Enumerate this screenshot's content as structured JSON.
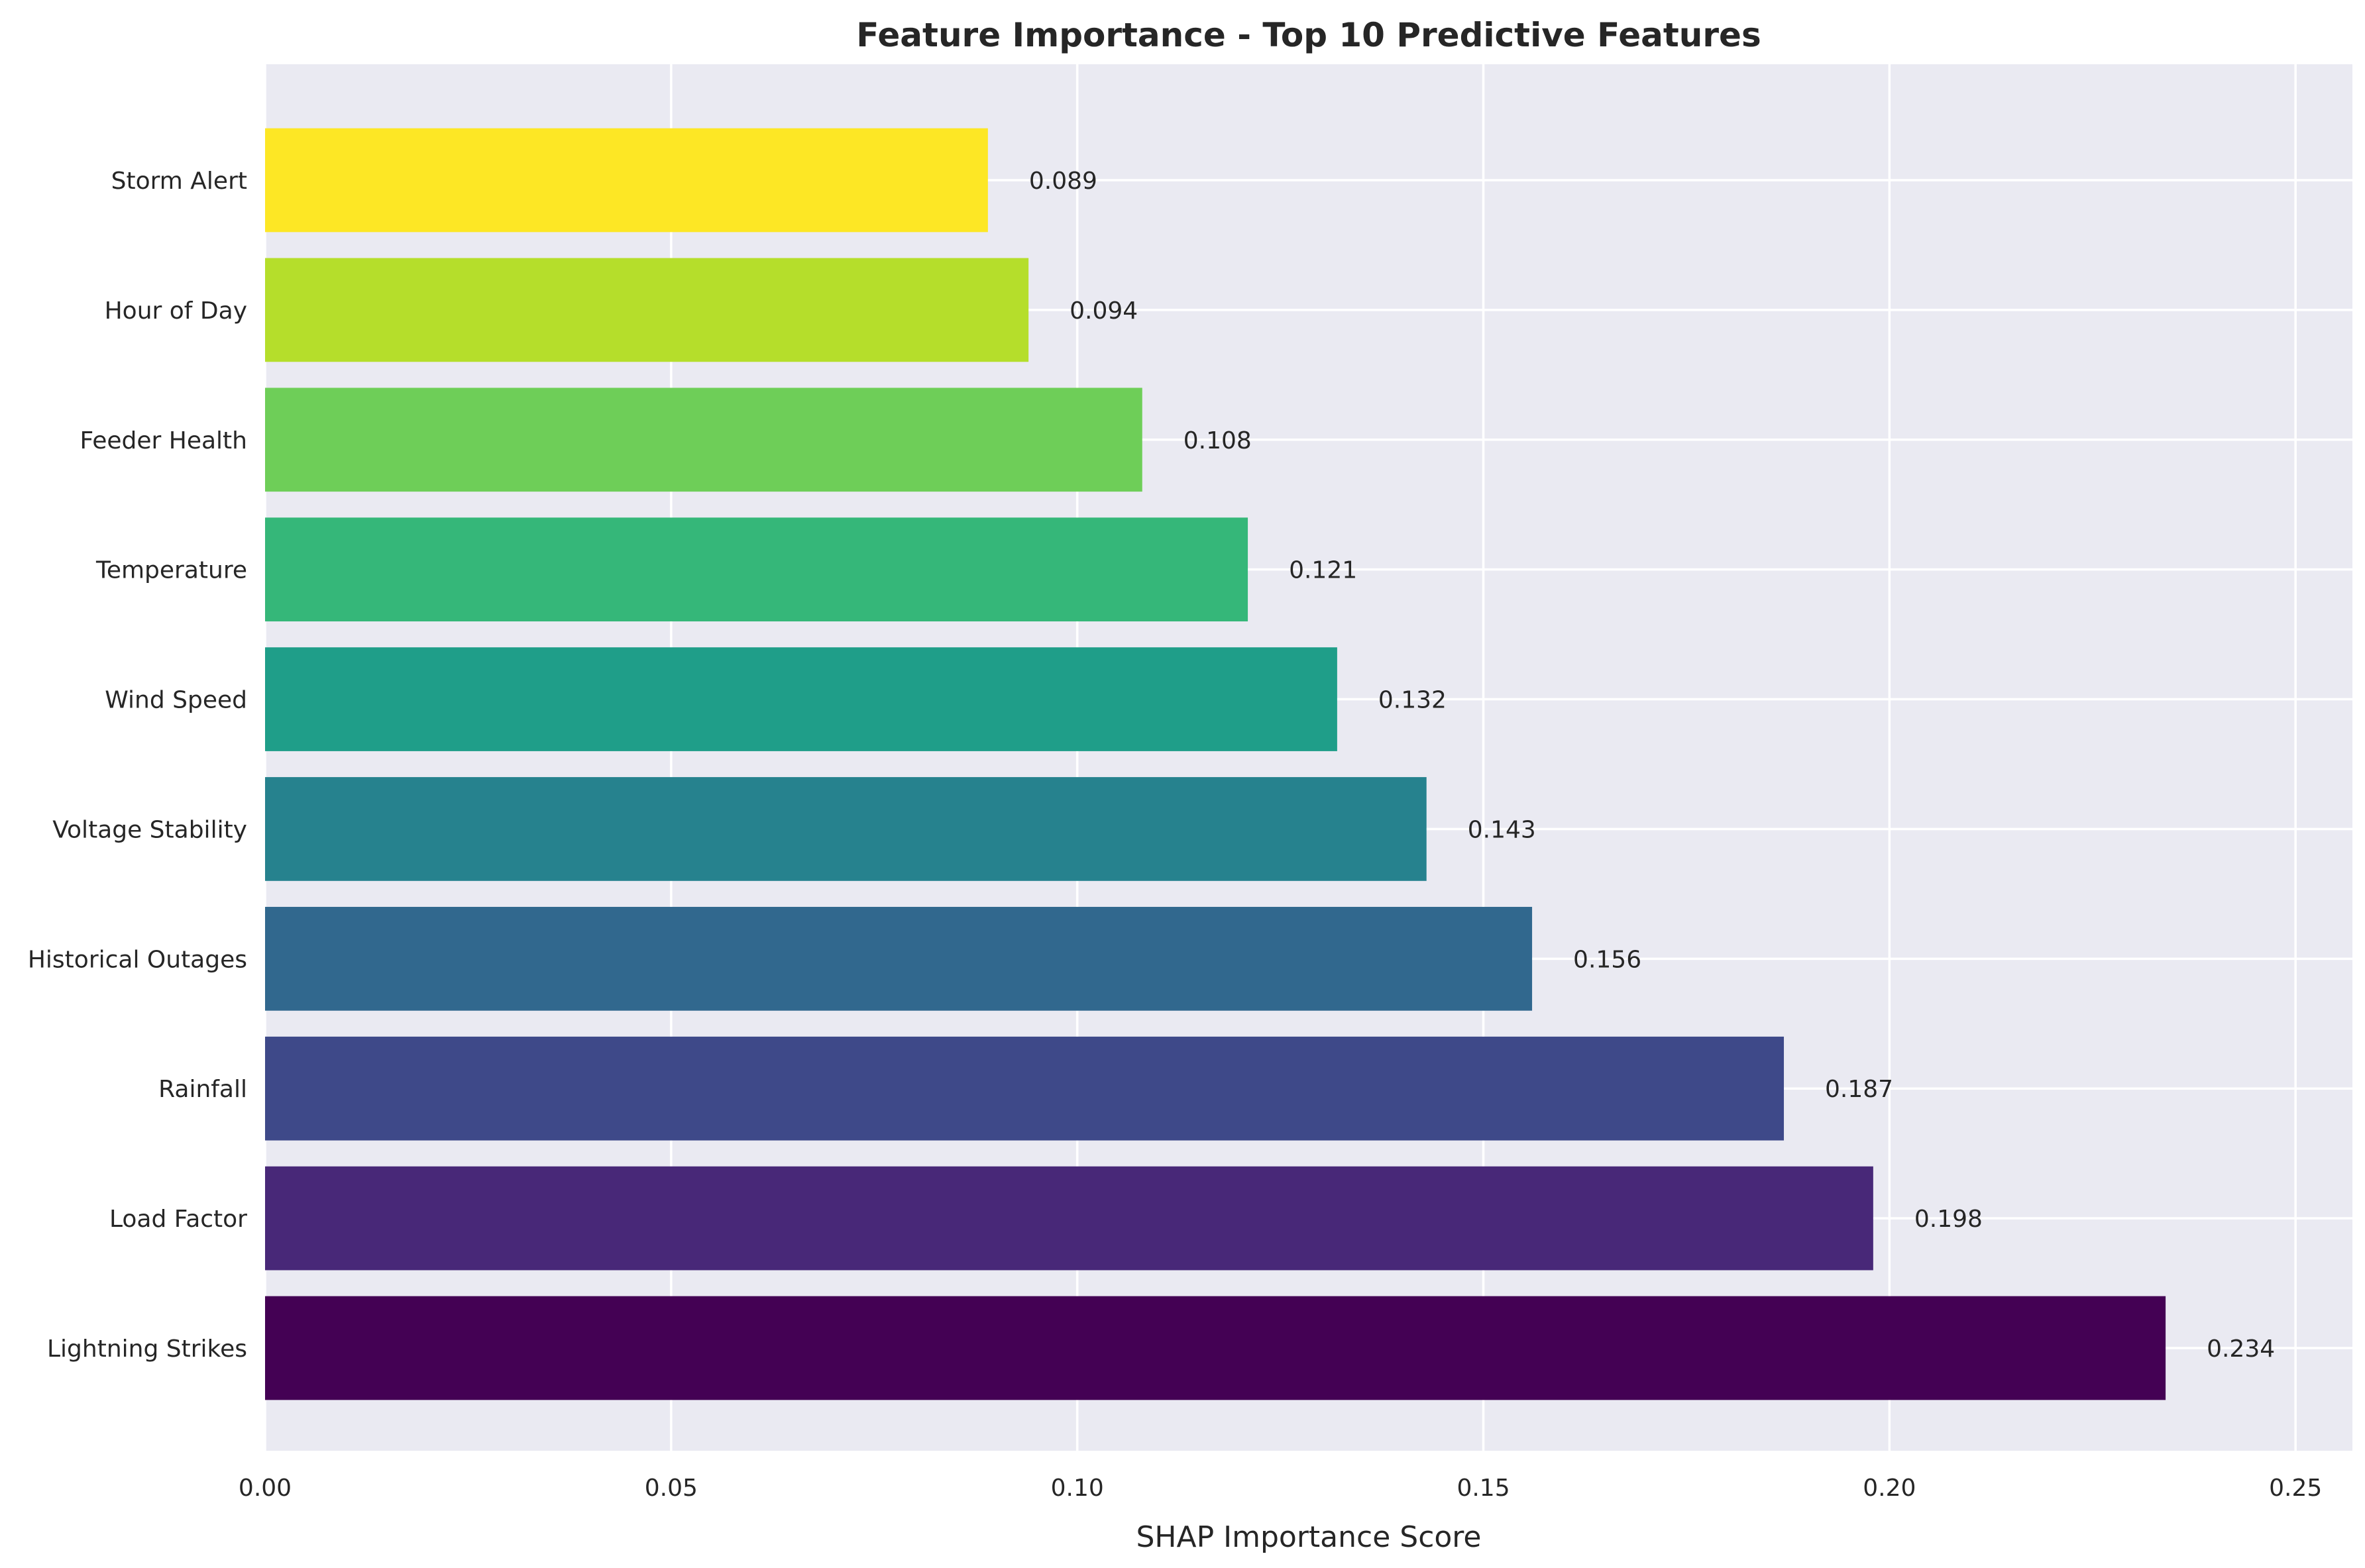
{
  "chart_data": {
    "type": "bar",
    "orientation": "horizontal",
    "title": "Feature Importance - Top 10 Predictive Features",
    "xlabel": "SHAP Importance Score",
    "ylabel": "",
    "xlim": [
      0,
      0.257
    ],
    "x_ticks": [
      "0.00",
      "0.05",
      "0.10",
      "0.15",
      "0.20",
      "0.25"
    ],
    "x_tick_values": [
      0,
      0.05,
      0.1,
      0.15,
      0.2,
      0.25
    ],
    "grid": true,
    "categories": [
      "Lightning Strikes",
      "Load Factor",
      "Rainfall",
      "Historical Outages",
      "Voltage Stability",
      "Wind Speed",
      "Temperature",
      "Feeder Health",
      "Hour of Day",
      "Storm Alert"
    ],
    "values": [
      0.234,
      0.198,
      0.187,
      0.156,
      0.143,
      0.132,
      0.121,
      0.108,
      0.094,
      0.089
    ],
    "value_labels": [
      "0.234",
      "0.198",
      "0.187",
      "0.156",
      "0.143",
      "0.132",
      "0.121",
      "0.108",
      "0.094",
      "0.089"
    ],
    "colors": [
      "#440154",
      "#482878",
      "#3e4989",
      "#31688e",
      "#26828e",
      "#1f9e89",
      "#35b779",
      "#6ece58",
      "#b5de2b",
      "#fde725"
    ]
  },
  "colors": {
    "plot_background": "#eaeaf2",
    "grid": "#ffffff",
    "text": "#262626"
  }
}
